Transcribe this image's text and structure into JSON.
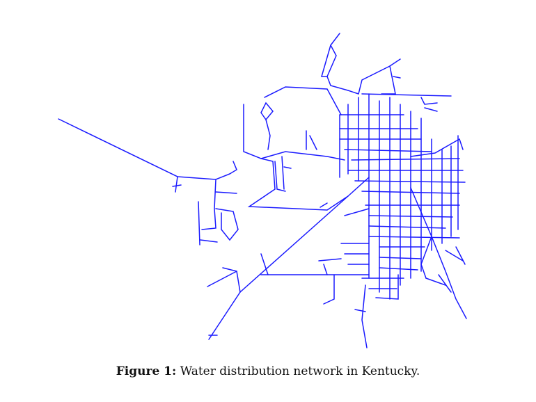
{
  "figure": {
    "label": "Figure 1:",
    "caption": "Water distribution network in Kentucky."
  },
  "colors": {
    "pipe": "#1a1aff",
    "background": "#ffffff",
    "text": "#111111"
  }
}
